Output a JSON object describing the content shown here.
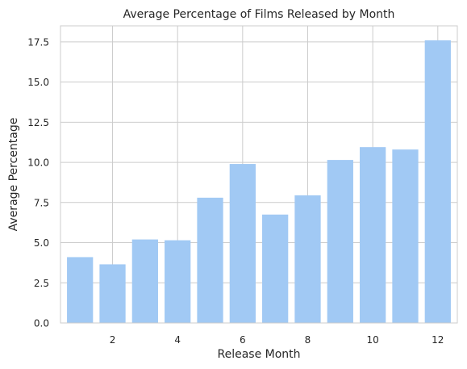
{
  "chart_data": {
    "type": "bar",
    "title": "Average Percentage of Films Released by Month",
    "xlabel": "Release Month",
    "ylabel": "Average Percentage",
    "x": [
      1,
      2,
      3,
      4,
      5,
      6,
      7,
      8,
      9,
      10,
      11,
      12
    ],
    "values": [
      4.1,
      3.65,
      5.2,
      5.15,
      7.8,
      9.9,
      6.75,
      7.95,
      10.15,
      10.95,
      10.8,
      17.6
    ],
    "xlim": [
      0.4,
      12.6
    ],
    "ylim": [
      0,
      18.5
    ],
    "xticks": [
      2,
      4,
      6,
      8,
      10,
      12
    ],
    "xtick_labels": [
      "2",
      "4",
      "6",
      "8",
      "10",
      "12"
    ],
    "yticks": [
      0,
      2.5,
      5,
      7.5,
      10,
      12.5,
      15,
      17.5
    ],
    "ytick_labels": [
      "0.0",
      "2.5",
      "5.0",
      "7.5",
      "10.0",
      "12.5",
      "15.0",
      "17.5"
    ],
    "grid": true,
    "bar_color": "#a1c9f4",
    "grid_color": "#cccccc",
    "text_color": "#262626"
  }
}
